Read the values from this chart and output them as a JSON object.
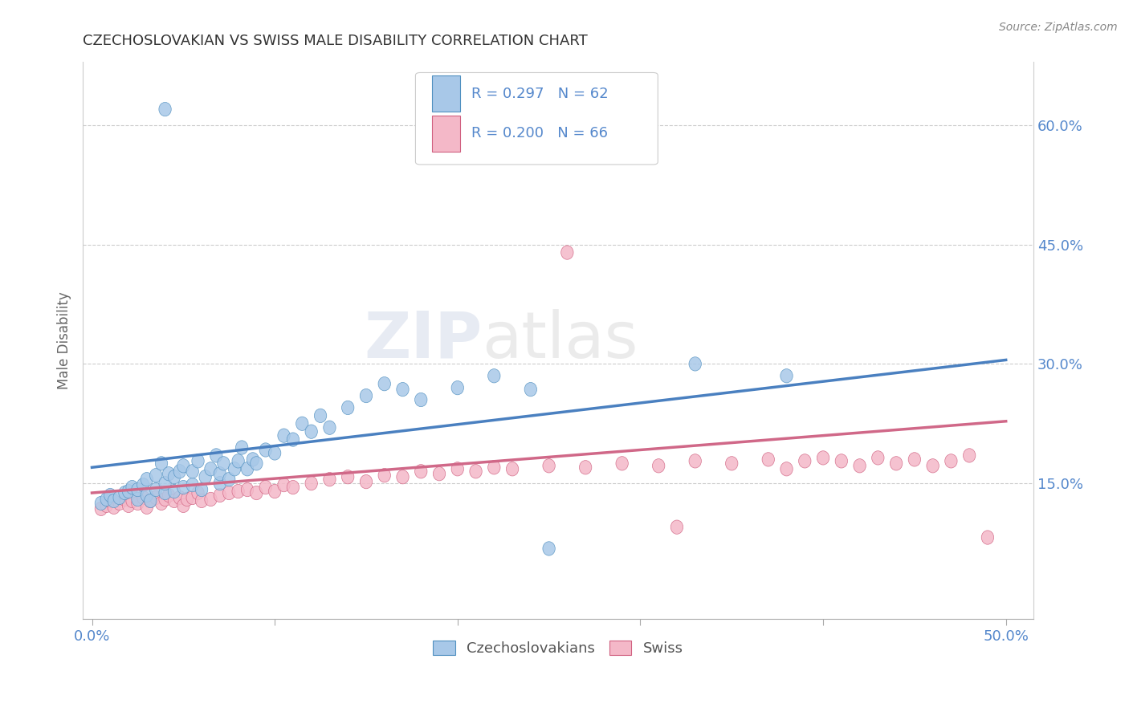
{
  "title": "CZECHOSLOVAKIAN VS SWISS MALE DISABILITY CORRELATION CHART",
  "source": "Source: ZipAtlas.com",
  "xlabel": "",
  "ylabel": "Male Disability",
  "watermark_zip": "ZIP",
  "watermark_atlas": "atlas",
  "xlim": [
    -0.005,
    0.515
  ],
  "ylim": [
    -0.02,
    0.68
  ],
  "xticks": [
    0.0,
    0.1,
    0.2,
    0.3,
    0.4,
    0.5
  ],
  "xtick_labels": [
    "0.0%",
    "",
    "",
    "",
    "",
    "50.0%"
  ],
  "yticks": [
    0.15,
    0.3,
    0.45,
    0.6
  ],
  "ytick_labels": [
    "15.0%",
    "30.0%",
    "45.0%",
    "60.0%"
  ],
  "blue_color": "#a8c8e8",
  "pink_color": "#f4b8c8",
  "blue_edge_color": "#5090c0",
  "pink_edge_color": "#d06080",
  "blue_line_color": "#4a80c0",
  "pink_line_color": "#d06888",
  "legend_blue_r": "R = 0.297",
  "legend_blue_n": "N = 62",
  "legend_pink_r": "R = 0.200",
  "legend_pink_n": "N = 66",
  "legend_label_blue": "Czechoslovakians",
  "legend_label_pink": "Swiss",
  "blue_x": [
    0.005,
    0.008,
    0.01,
    0.012,
    0.015,
    0.018,
    0.02,
    0.022,
    0.025,
    0.025,
    0.028,
    0.03,
    0.03,
    0.032,
    0.035,
    0.035,
    0.038,
    0.04,
    0.04,
    0.042,
    0.045,
    0.045,
    0.048,
    0.05,
    0.05,
    0.055,
    0.055,
    0.058,
    0.06,
    0.062,
    0.065,
    0.068,
    0.07,
    0.07,
    0.072,
    0.075,
    0.078,
    0.08,
    0.082,
    0.085,
    0.088,
    0.09,
    0.095,
    0.1,
    0.105,
    0.11,
    0.115,
    0.12,
    0.125,
    0.13,
    0.14,
    0.15,
    0.16,
    0.17,
    0.18,
    0.2,
    0.22,
    0.24,
    0.33,
    0.38,
    0.04,
    0.25
  ],
  "blue_y": [
    0.125,
    0.13,
    0.135,
    0.128,
    0.132,
    0.138,
    0.14,
    0.145,
    0.13,
    0.142,
    0.148,
    0.135,
    0.155,
    0.128,
    0.142,
    0.16,
    0.175,
    0.138,
    0.15,
    0.162,
    0.14,
    0.158,
    0.165,
    0.145,
    0.172,
    0.148,
    0.165,
    0.178,
    0.142,
    0.158,
    0.168,
    0.185,
    0.15,
    0.162,
    0.175,
    0.155,
    0.168,
    0.178,
    0.195,
    0.168,
    0.18,
    0.175,
    0.192,
    0.188,
    0.21,
    0.205,
    0.225,
    0.215,
    0.235,
    0.22,
    0.245,
    0.26,
    0.275,
    0.268,
    0.255,
    0.27,
    0.285,
    0.268,
    0.3,
    0.285,
    0.62,
    0.068
  ],
  "pink_x": [
    0.005,
    0.008,
    0.01,
    0.012,
    0.015,
    0.018,
    0.02,
    0.022,
    0.025,
    0.028,
    0.03,
    0.032,
    0.035,
    0.038,
    0.04,
    0.042,
    0.045,
    0.048,
    0.05,
    0.052,
    0.055,
    0.058,
    0.06,
    0.065,
    0.07,
    0.075,
    0.08,
    0.085,
    0.09,
    0.095,
    0.1,
    0.105,
    0.11,
    0.12,
    0.13,
    0.14,
    0.15,
    0.16,
    0.17,
    0.18,
    0.19,
    0.2,
    0.21,
    0.22,
    0.23,
    0.25,
    0.27,
    0.29,
    0.31,
    0.33,
    0.35,
    0.37,
    0.38,
    0.39,
    0.4,
    0.41,
    0.42,
    0.43,
    0.44,
    0.45,
    0.46,
    0.47,
    0.48,
    0.49,
    0.26,
    0.32
  ],
  "pink_y": [
    0.118,
    0.122,
    0.128,
    0.12,
    0.125,
    0.13,
    0.122,
    0.128,
    0.125,
    0.132,
    0.12,
    0.128,
    0.132,
    0.125,
    0.13,
    0.135,
    0.128,
    0.132,
    0.122,
    0.13,
    0.132,
    0.138,
    0.128,
    0.13,
    0.135,
    0.138,
    0.14,
    0.142,
    0.138,
    0.145,
    0.14,
    0.148,
    0.145,
    0.15,
    0.155,
    0.158,
    0.152,
    0.16,
    0.158,
    0.165,
    0.162,
    0.168,
    0.165,
    0.17,
    0.168,
    0.172,
    0.17,
    0.175,
    0.172,
    0.178,
    0.175,
    0.18,
    0.168,
    0.178,
    0.182,
    0.178,
    0.172,
    0.182,
    0.175,
    0.18,
    0.172,
    0.178,
    0.185,
    0.082,
    0.44,
    0.095
  ],
  "blue_trend_x": [
    0.0,
    0.5
  ],
  "blue_trend_y": [
    0.17,
    0.305
  ],
  "pink_trend_x": [
    0.0,
    0.5
  ],
  "pink_trend_y": [
    0.138,
    0.228
  ],
  "background_color": "#ffffff",
  "grid_color": "#cccccc",
  "title_color": "#333333",
  "axis_label_color": "#666666",
  "tick_label_color": "#5588cc"
}
